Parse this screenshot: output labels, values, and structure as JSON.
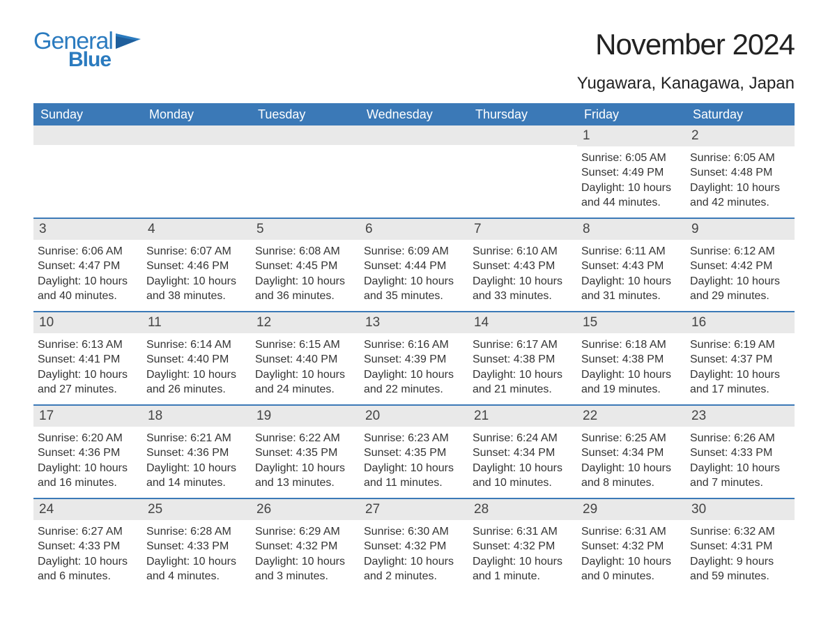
{
  "logo": {
    "main": "General",
    "sub": "Blue"
  },
  "title": "November 2024",
  "location": "Yugawara, Kanagawa, Japan",
  "colors": {
    "header_bg": "#3b79b7",
    "header_text": "#ffffff",
    "row_divider": "#3b79b7",
    "daybar_bg": "#e9e9e9",
    "logo_color": "#2b7bbf",
    "body_text": "#333333",
    "background": "#ffffff"
  },
  "day_headers": [
    "Sunday",
    "Monday",
    "Tuesday",
    "Wednesday",
    "Thursday",
    "Friday",
    "Saturday"
  ],
  "weeks": [
    [
      {
        "empty": true
      },
      {
        "empty": true
      },
      {
        "empty": true
      },
      {
        "empty": true
      },
      {
        "empty": true
      },
      {
        "num": "1",
        "sunrise": "Sunrise: 6:05 AM",
        "sunset": "Sunset: 4:49 PM",
        "daylight1": "Daylight: 10 hours",
        "daylight2": "and 44 minutes."
      },
      {
        "num": "2",
        "sunrise": "Sunrise: 6:05 AM",
        "sunset": "Sunset: 4:48 PM",
        "daylight1": "Daylight: 10 hours",
        "daylight2": "and 42 minutes."
      }
    ],
    [
      {
        "num": "3",
        "sunrise": "Sunrise: 6:06 AM",
        "sunset": "Sunset: 4:47 PM",
        "daylight1": "Daylight: 10 hours",
        "daylight2": "and 40 minutes."
      },
      {
        "num": "4",
        "sunrise": "Sunrise: 6:07 AM",
        "sunset": "Sunset: 4:46 PM",
        "daylight1": "Daylight: 10 hours",
        "daylight2": "and 38 minutes."
      },
      {
        "num": "5",
        "sunrise": "Sunrise: 6:08 AM",
        "sunset": "Sunset: 4:45 PM",
        "daylight1": "Daylight: 10 hours",
        "daylight2": "and 36 minutes."
      },
      {
        "num": "6",
        "sunrise": "Sunrise: 6:09 AM",
        "sunset": "Sunset: 4:44 PM",
        "daylight1": "Daylight: 10 hours",
        "daylight2": "and 35 minutes."
      },
      {
        "num": "7",
        "sunrise": "Sunrise: 6:10 AM",
        "sunset": "Sunset: 4:43 PM",
        "daylight1": "Daylight: 10 hours",
        "daylight2": "and 33 minutes."
      },
      {
        "num": "8",
        "sunrise": "Sunrise: 6:11 AM",
        "sunset": "Sunset: 4:43 PM",
        "daylight1": "Daylight: 10 hours",
        "daylight2": "and 31 minutes."
      },
      {
        "num": "9",
        "sunrise": "Sunrise: 6:12 AM",
        "sunset": "Sunset: 4:42 PM",
        "daylight1": "Daylight: 10 hours",
        "daylight2": "and 29 minutes."
      }
    ],
    [
      {
        "num": "10",
        "sunrise": "Sunrise: 6:13 AM",
        "sunset": "Sunset: 4:41 PM",
        "daylight1": "Daylight: 10 hours",
        "daylight2": "and 27 minutes."
      },
      {
        "num": "11",
        "sunrise": "Sunrise: 6:14 AM",
        "sunset": "Sunset: 4:40 PM",
        "daylight1": "Daylight: 10 hours",
        "daylight2": "and 26 minutes."
      },
      {
        "num": "12",
        "sunrise": "Sunrise: 6:15 AM",
        "sunset": "Sunset: 4:40 PM",
        "daylight1": "Daylight: 10 hours",
        "daylight2": "and 24 minutes."
      },
      {
        "num": "13",
        "sunrise": "Sunrise: 6:16 AM",
        "sunset": "Sunset: 4:39 PM",
        "daylight1": "Daylight: 10 hours",
        "daylight2": "and 22 minutes."
      },
      {
        "num": "14",
        "sunrise": "Sunrise: 6:17 AM",
        "sunset": "Sunset: 4:38 PM",
        "daylight1": "Daylight: 10 hours",
        "daylight2": "and 21 minutes."
      },
      {
        "num": "15",
        "sunrise": "Sunrise: 6:18 AM",
        "sunset": "Sunset: 4:38 PM",
        "daylight1": "Daylight: 10 hours",
        "daylight2": "and 19 minutes."
      },
      {
        "num": "16",
        "sunrise": "Sunrise: 6:19 AM",
        "sunset": "Sunset: 4:37 PM",
        "daylight1": "Daylight: 10 hours",
        "daylight2": "and 17 minutes."
      }
    ],
    [
      {
        "num": "17",
        "sunrise": "Sunrise: 6:20 AM",
        "sunset": "Sunset: 4:36 PM",
        "daylight1": "Daylight: 10 hours",
        "daylight2": "and 16 minutes."
      },
      {
        "num": "18",
        "sunrise": "Sunrise: 6:21 AM",
        "sunset": "Sunset: 4:36 PM",
        "daylight1": "Daylight: 10 hours",
        "daylight2": "and 14 minutes."
      },
      {
        "num": "19",
        "sunrise": "Sunrise: 6:22 AM",
        "sunset": "Sunset: 4:35 PM",
        "daylight1": "Daylight: 10 hours",
        "daylight2": "and 13 minutes."
      },
      {
        "num": "20",
        "sunrise": "Sunrise: 6:23 AM",
        "sunset": "Sunset: 4:35 PM",
        "daylight1": "Daylight: 10 hours",
        "daylight2": "and 11 minutes."
      },
      {
        "num": "21",
        "sunrise": "Sunrise: 6:24 AM",
        "sunset": "Sunset: 4:34 PM",
        "daylight1": "Daylight: 10 hours",
        "daylight2": "and 10 minutes."
      },
      {
        "num": "22",
        "sunrise": "Sunrise: 6:25 AM",
        "sunset": "Sunset: 4:34 PM",
        "daylight1": "Daylight: 10 hours",
        "daylight2": "and 8 minutes."
      },
      {
        "num": "23",
        "sunrise": "Sunrise: 6:26 AM",
        "sunset": "Sunset: 4:33 PM",
        "daylight1": "Daylight: 10 hours",
        "daylight2": "and 7 minutes."
      }
    ],
    [
      {
        "num": "24",
        "sunrise": "Sunrise: 6:27 AM",
        "sunset": "Sunset: 4:33 PM",
        "daylight1": "Daylight: 10 hours",
        "daylight2": "and 6 minutes."
      },
      {
        "num": "25",
        "sunrise": "Sunrise: 6:28 AM",
        "sunset": "Sunset: 4:33 PM",
        "daylight1": "Daylight: 10 hours",
        "daylight2": "and 4 minutes."
      },
      {
        "num": "26",
        "sunrise": "Sunrise: 6:29 AM",
        "sunset": "Sunset: 4:32 PM",
        "daylight1": "Daylight: 10 hours",
        "daylight2": "and 3 minutes."
      },
      {
        "num": "27",
        "sunrise": "Sunrise: 6:30 AM",
        "sunset": "Sunset: 4:32 PM",
        "daylight1": "Daylight: 10 hours",
        "daylight2": "and 2 minutes."
      },
      {
        "num": "28",
        "sunrise": "Sunrise: 6:31 AM",
        "sunset": "Sunset: 4:32 PM",
        "daylight1": "Daylight: 10 hours",
        "daylight2": "and 1 minute."
      },
      {
        "num": "29",
        "sunrise": "Sunrise: 6:31 AM",
        "sunset": "Sunset: 4:32 PM",
        "daylight1": "Daylight: 10 hours",
        "daylight2": "and 0 minutes."
      },
      {
        "num": "30",
        "sunrise": "Sunrise: 6:32 AM",
        "sunset": "Sunset: 4:31 PM",
        "daylight1": "Daylight: 9 hours",
        "daylight2": "and 59 minutes."
      }
    ]
  ]
}
